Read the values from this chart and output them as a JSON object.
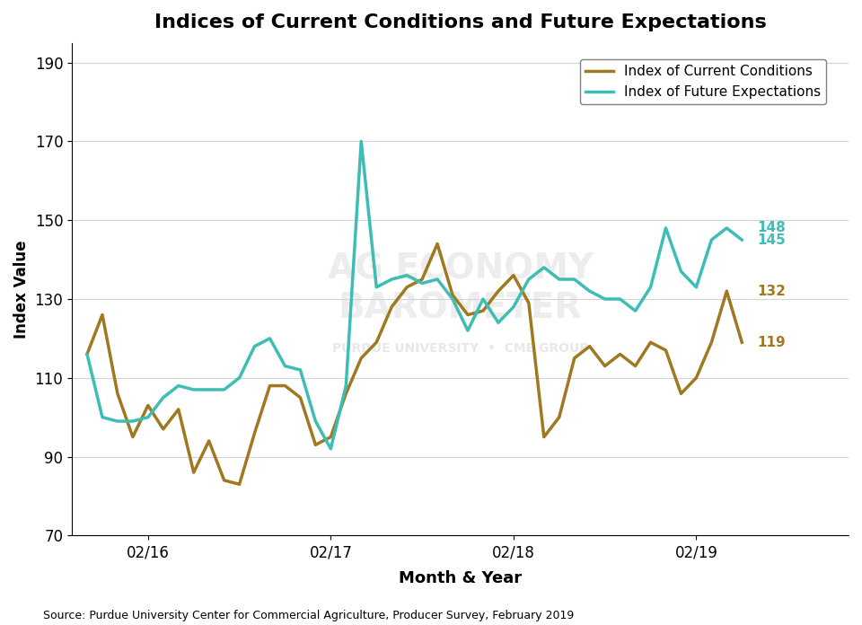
{
  "title": "Indices of Current Conditions and Future Expectations",
  "xlabel": "Month & Year",
  "ylabel": "Index Value",
  "source": "Source: Purdue University Center for Commercial Agriculture, Producer Survey, February 2019",
  "ylim": [
    70,
    195
  ],
  "yticks": [
    70,
    90,
    110,
    130,
    150,
    170,
    190
  ],
  "xtick_labels": [
    "02/16",
    "02/17",
    "02/18",
    "02/19"
  ],
  "color_conditions": "#A07820",
  "color_expectations": "#3DBDB4",
  "legend_labels": [
    "Index of Current Conditions",
    "Index of Future Expectations"
  ],
  "end_labels": {
    "conditions_last": 119,
    "conditions_second_last": 132,
    "expectations_last": 145,
    "expectations_second_last": 148
  },
  "conditions": [
    116,
    126,
    106,
    95,
    103,
    97,
    102,
    86,
    94,
    84,
    83,
    96,
    108,
    108,
    105,
    93,
    95,
    106,
    115,
    119,
    128,
    133,
    135,
    144,
    131,
    126,
    127,
    132,
    136,
    129,
    95,
    100,
    115,
    118,
    113,
    116,
    113,
    119,
    117,
    106,
    110,
    119,
    132,
    119
  ],
  "expectations": [
    116,
    100,
    99,
    99,
    100,
    105,
    108,
    107,
    107,
    107,
    110,
    118,
    120,
    113,
    112,
    99,
    92,
    108,
    170,
    133,
    135,
    136,
    134,
    135,
    130,
    122,
    130,
    124,
    128,
    135,
    138,
    135,
    135,
    132,
    130,
    130,
    127,
    133,
    148,
    137,
    133,
    145,
    148,
    145
  ],
  "n_points": 44
}
